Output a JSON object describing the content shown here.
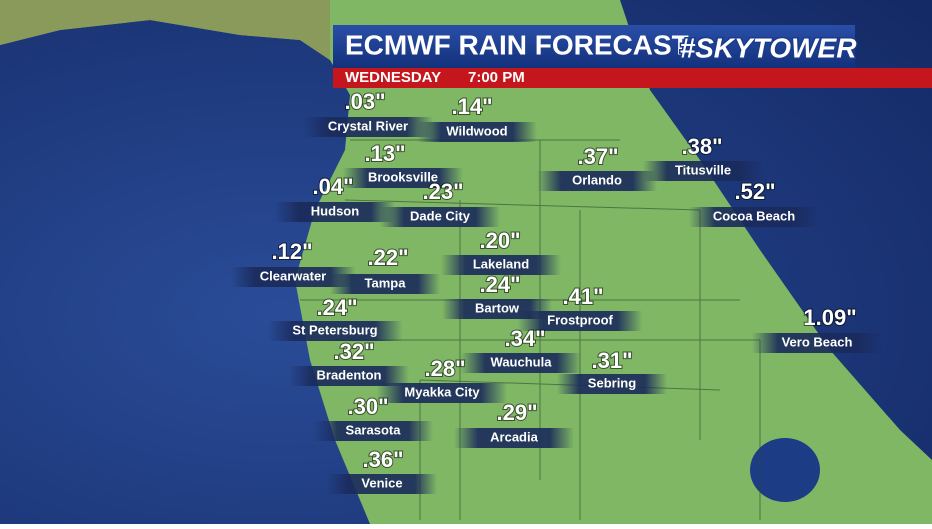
{
  "header": {
    "title": "ECMWF RAIN FORECAST",
    "logo": "#SKYTOWER",
    "day": "WEDNESDAY",
    "time": "7:00 PM"
  },
  "cities": [
    {
      "name": "Crystal River",
      "amount": ".03\""
    },
    {
      "name": "Wildwood",
      "amount": ".14\""
    },
    {
      "name": "Brooksville",
      "amount": ".13\""
    },
    {
      "name": "Dade City",
      "amount": ".23\""
    },
    {
      "name": "Hudson",
      "amount": ".04\""
    },
    {
      "name": "Orlando",
      "amount": ".37\""
    },
    {
      "name": "Titusville",
      "amount": ".38\""
    },
    {
      "name": "Cocoa Beach",
      "amount": ".52\""
    },
    {
      "name": "Clearwater",
      "amount": ".12\""
    },
    {
      "name": "Tampa",
      "amount": ".22\""
    },
    {
      "name": "Lakeland",
      "amount": ".20\""
    },
    {
      "name": "Bartow",
      "amount": ".24\""
    },
    {
      "name": "Frostproof",
      "amount": ".41\""
    },
    {
      "name": "St Petersburg",
      "amount": ".24\""
    },
    {
      "name": "Vero Beach",
      "amount": "1.09\""
    },
    {
      "name": "Bradenton",
      "amount": ".32\""
    },
    {
      "name": "Wauchula",
      "amount": ".34\""
    },
    {
      "name": "Sebring",
      "amount": ".31\""
    },
    {
      "name": "Myakka City",
      "amount": ".28\""
    },
    {
      "name": "Sarasota",
      "amount": ".30\""
    },
    {
      "name": "Arcadia",
      "amount": ".29\""
    },
    {
      "name": "Venice",
      "amount": ".36\""
    }
  ]
}
